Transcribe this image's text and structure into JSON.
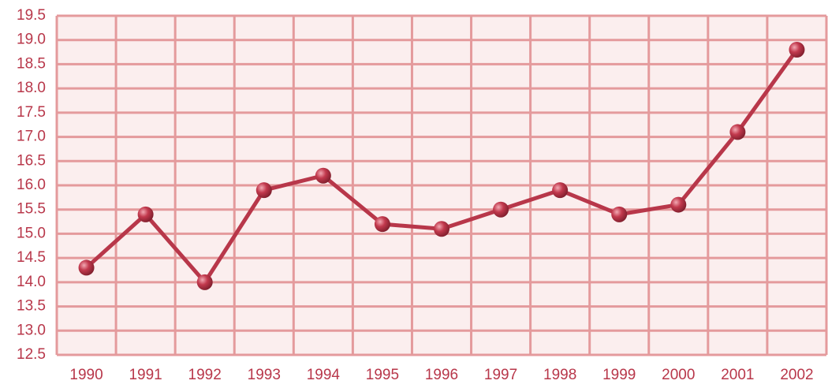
{
  "chart_data": {
    "type": "line",
    "categories": [
      "1990",
      "1991",
      "1992",
      "1993",
      "1994",
      "1995",
      "1996",
      "1997",
      "1998",
      "1999",
      "2000",
      "2001",
      "2002"
    ],
    "series": [
      {
        "color": "#b8374a",
        "values": [
          14.3,
          15.4,
          14.0,
          15.9,
          16.2,
          15.2,
          15.1,
          15.5,
          15.9,
          15.4,
          15.6,
          17.1,
          18.8
        ]
      }
    ],
    "ylim": [
      12.5,
      19.5
    ],
    "yticks": [
      {
        "value": 12.5,
        "label": "12.5"
      },
      {
        "value": 13,
        "label": "13.0"
      },
      {
        "value": 13.5,
        "label": "13.5"
      },
      {
        "value": 14,
        "label": "14.0"
      },
      {
        "value": 14.5,
        "label": "14.5"
      },
      {
        "value": 15,
        "label": "15.0"
      },
      {
        "value": 15.5,
        "label": "15.5"
      },
      {
        "value": 16,
        "label": "16.0"
      },
      {
        "value": 16.5,
        "label": "16.5"
      },
      {
        "value": 17,
        "label": "17.0"
      },
      {
        "value": 17.5,
        "label": "17.5"
      },
      {
        "value": 18,
        "label": "18.0"
      },
      {
        "value": 18.5,
        "label": "18.5"
      },
      {
        "value": 19,
        "label": "19.0"
      },
      {
        "value": 19.5,
        "label": "19.5"
      }
    ],
    "grid": true
  }
}
